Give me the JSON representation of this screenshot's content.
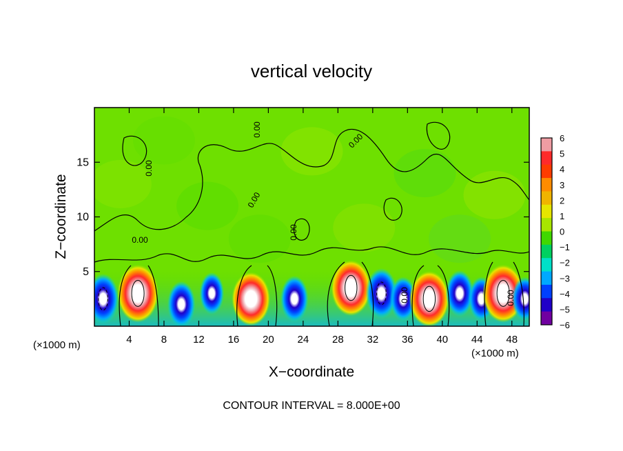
{
  "chart_data": {
    "type": "heatmap",
    "title": "vertical velocity",
    "xlabel": "X−coordinate",
    "ylabel": "Z−coordinate",
    "x_unit_left": "(×1000 m)",
    "x_unit_right": "(×1000 m)",
    "xlim": [
      0,
      50
    ],
    "ylim": [
      0,
      20
    ],
    "x_ticks": [
      4,
      8,
      12,
      16,
      20,
      24,
      28,
      32,
      36,
      40,
      44,
      48
    ],
    "y_ticks": [
      5,
      10,
      15
    ],
    "footer": "CONTOUR INTERVAL = 8.000E+00",
    "contour_labels": [
      "0.00",
      "0.00",
      "0.00",
      "0.00",
      "0.00",
      "0.00",
      "0.00",
      "0.00"
    ],
    "colorbar": {
      "ticks": [
        "6",
        "5",
        "4",
        "3",
        "2",
        "1",
        "0",
        "−1",
        "−2",
        "−3",
        "−4",
        "−5",
        "−6"
      ],
      "colors": [
        "#ef9ca3",
        "#ff2a2a",
        "#ff3c00",
        "#ff8c00",
        "#f0b400",
        "#e6e600",
        "#a8e600",
        "#40d800",
        "#00d060",
        "#00e0c8",
        "#00a8ff",
        "#0040ff",
        "#2000c8",
        "#7000a0"
      ]
    },
    "cells": [
      {
        "x": 1,
        "z": 2.5,
        "w": -7
      },
      {
        "x": 5,
        "z": 3,
        "w": 8
      },
      {
        "x": 10,
        "z": 2,
        "w": -5
      },
      {
        "x": 13.5,
        "z": 3,
        "w": -3
      },
      {
        "x": 18,
        "z": 2.5,
        "w": 6
      },
      {
        "x": 23,
        "z": 2.5,
        "w": -5
      },
      {
        "x": 29.5,
        "z": 3.5,
        "w": 7
      },
      {
        "x": 33,
        "z": 3,
        "w": -7
      },
      {
        "x": 35.5,
        "z": 2.5,
        "w": -4
      },
      {
        "x": 38.5,
        "z": 2.5,
        "w": 7
      },
      {
        "x": 42,
        "z": 3,
        "w": -5
      },
      {
        "x": 44.5,
        "z": 2.5,
        "w": -4
      },
      {
        "x": 47,
        "z": 3,
        "w": 8
      },
      {
        "x": 49.5,
        "z": 2.5,
        "w": -4
      }
    ]
  }
}
